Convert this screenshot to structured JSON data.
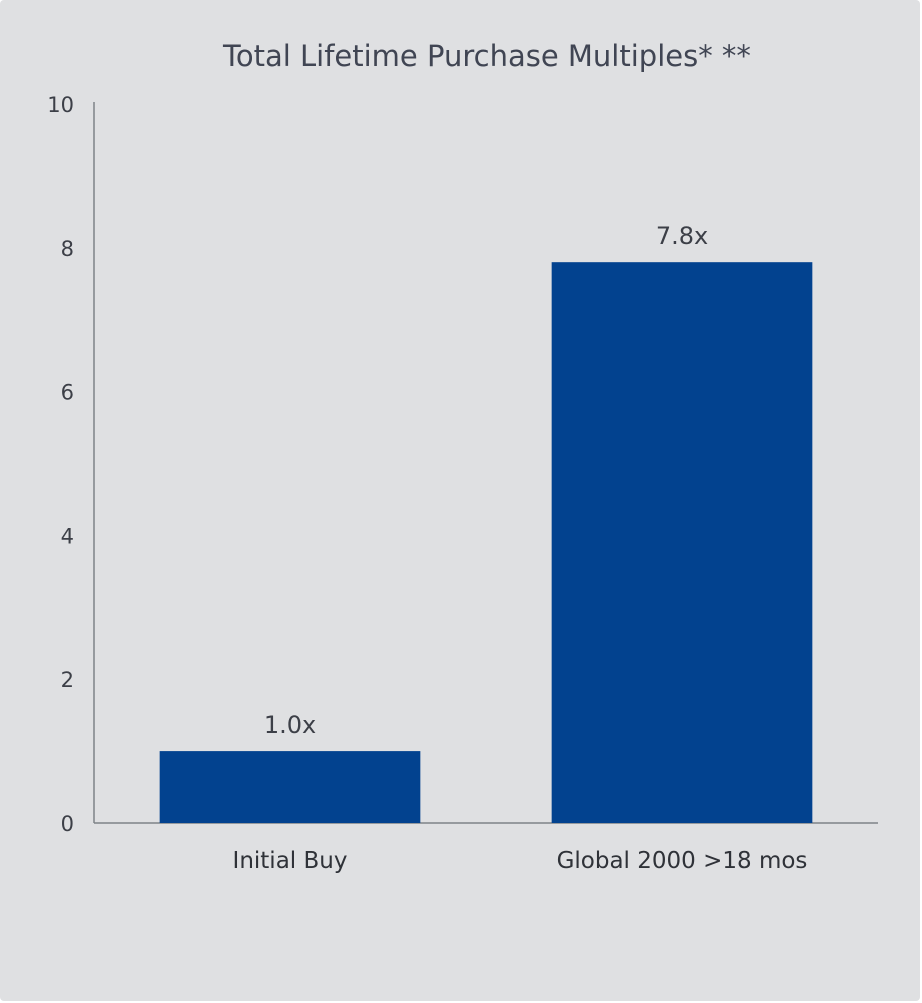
{
  "chart_data": {
    "type": "bar",
    "title": "Total Lifetime Purchase Multiples* **",
    "categories": [
      "Initial Buy",
      "Global 2000 >18 mos"
    ],
    "values": [
      1.0,
      7.8
    ],
    "data_labels": [
      "1.0x",
      "7.8x"
    ],
    "ylim": [
      0,
      10
    ],
    "yticks": [
      0,
      2,
      4,
      6,
      8,
      10
    ],
    "ytick_labels": [
      "0",
      "2",
      "4",
      "6",
      "8",
      "10"
    ],
    "xlabel": "",
    "ylabel": "",
    "grid": false,
    "legend": "none",
    "colors": {
      "bar": "#02428f",
      "background": "#dfe0e2",
      "axis": "#7f8287",
      "text": "#404553"
    }
  }
}
